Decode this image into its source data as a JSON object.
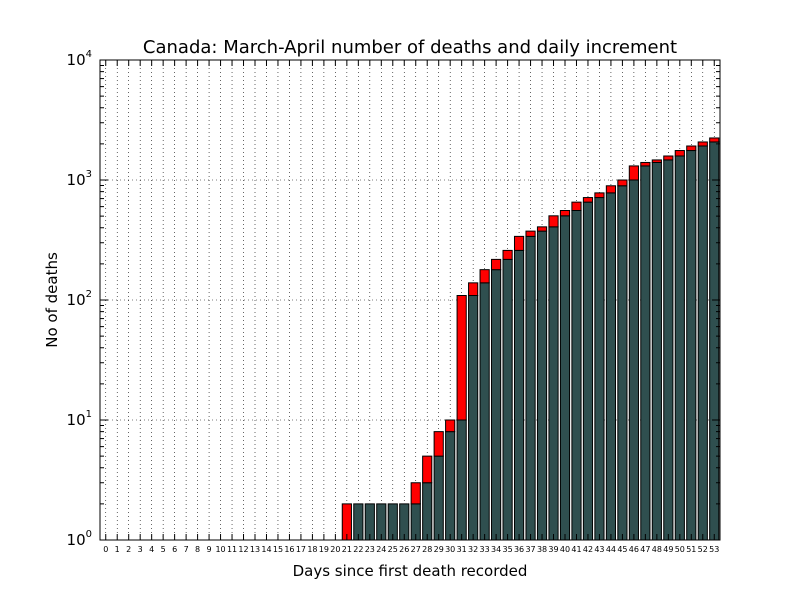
{
  "chart_data": {
    "type": "bar",
    "title": "Canada: March-April number of deaths and daily increment",
    "xlabel": "Days since first death recorded",
    "ylabel": "No of deaths",
    "yscale": "log",
    "ylim": [
      1,
      10000
    ],
    "ytick_base": "10",
    "ytick_exponents": [
      "0",
      "1",
      "2",
      "3",
      "4"
    ],
    "grid": true,
    "categories": [
      "0",
      "1",
      "2",
      "3",
      "4",
      "5",
      "6",
      "7",
      "8",
      "9",
      "10",
      "11",
      "12",
      "13",
      "14",
      "15",
      "16",
      "17",
      "18",
      "19",
      "20",
      "21",
      "22",
      "23",
      "24",
      "25",
      "26",
      "27",
      "28",
      "29",
      "30",
      "31",
      "32",
      "33",
      "34",
      "35",
      "36",
      "37",
      "38",
      "39",
      "40",
      "41",
      "42",
      "43",
      "44",
      "45",
      "46",
      "47",
      "48",
      "49",
      "50",
      "51",
      "52",
      "53"
    ],
    "series": [
      {
        "role": "previous-day-total",
        "color": "#2f4f4f",
        "values": [
          0,
          0,
          0,
          0,
          0,
          0,
          0,
          0,
          0,
          0,
          0,
          0,
          0,
          0,
          0,
          0,
          0,
          0,
          0,
          0,
          0,
          0,
          2,
          2,
          2,
          2,
          2,
          2,
          3,
          5,
          8,
          10,
          109,
          139,
          179,
          218,
          259,
          339,
          375,
          407,
          503,
          557,
          654,
          714,
          781,
          895,
          1000,
          1310,
          1400,
          1470,
          1585,
          1760,
          1920,
          2075
        ]
      },
      {
        "role": "daily-increment",
        "color": "#ff0000",
        "values": [
          0,
          0,
          0,
          0,
          0,
          0,
          0,
          0,
          0,
          0,
          0,
          0,
          0,
          0,
          0,
          0,
          0,
          0,
          0,
          0,
          0,
          2,
          0,
          0,
          0,
          0,
          0,
          1,
          2,
          3,
          2,
          99,
          30,
          40,
          39,
          41,
          80,
          36,
          32,
          96,
          54,
          97,
          60,
          67,
          114,
          105,
          310,
          90,
          70,
          115,
          175,
          160,
          155,
          165
        ]
      }
    ]
  }
}
